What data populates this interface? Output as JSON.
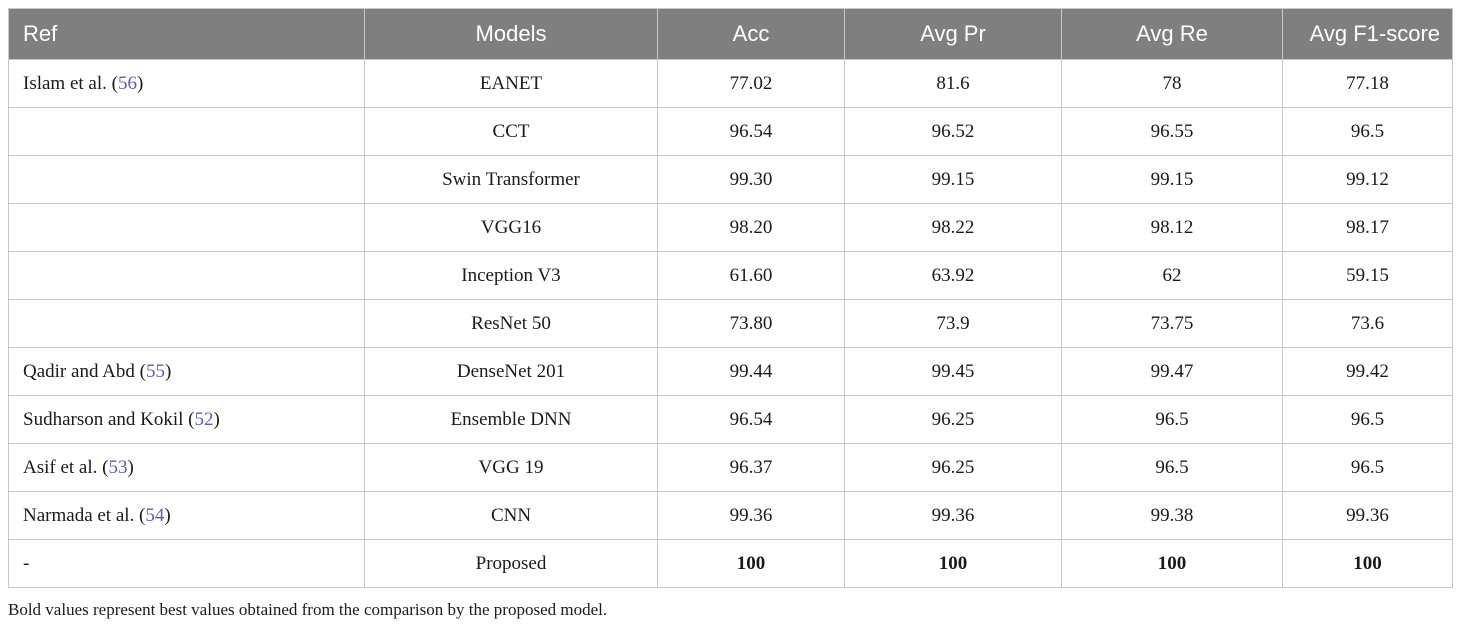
{
  "table": {
    "headers": [
      "Ref",
      "Models",
      "Acc",
      "Avg Pr",
      "Avg Re",
      "Avg F1-score"
    ],
    "rows": [
      {
        "ref": "Islam et al. (",
        "cite": "56",
        "ref_close": ")",
        "model": "EANET",
        "acc": "77.02",
        "pr": "81.6",
        "re": "78",
        "f1": "77.18",
        "bold": false
      },
      {
        "ref": "",
        "cite": "",
        "ref_close": "",
        "model": "CCT",
        "acc": "96.54",
        "pr": "96.52",
        "re": "96.55",
        "f1": "96.5",
        "bold": false
      },
      {
        "ref": "",
        "cite": "",
        "ref_close": "",
        "model": "Swin Transformer",
        "acc": "99.30",
        "pr": "99.15",
        "re": "99.15",
        "f1": "99.12",
        "bold": false
      },
      {
        "ref": "",
        "cite": "",
        "ref_close": "",
        "model": "VGG16",
        "acc": "98.20",
        "pr": "98.22",
        "re": "98.12",
        "f1": "98.17",
        "bold": false
      },
      {
        "ref": "",
        "cite": "",
        "ref_close": "",
        "model": "Inception V3",
        "acc": "61.60",
        "pr": "63.92",
        "re": "62",
        "f1": "59.15",
        "bold": false
      },
      {
        "ref": "",
        "cite": "",
        "ref_close": "",
        "model": "ResNet 50",
        "acc": "73.80",
        "pr": "73.9",
        "re": "73.75",
        "f1": "73.6",
        "bold": false
      },
      {
        "ref": "Qadir and Abd (",
        "cite": "55",
        "ref_close": ")",
        "model": "DenseNet 201",
        "acc": "99.44",
        "pr": "99.45",
        "re": "99.47",
        "f1": "99.42",
        "bold": false
      },
      {
        "ref": "Sudharson and Kokil (",
        "cite": "52",
        "ref_close": ")",
        "model": "Ensemble DNN",
        "acc": "96.54",
        "pr": "96.25",
        "re": "96.5",
        "f1": "96.5",
        "bold": false
      },
      {
        "ref": "Asif et al. (",
        "cite": "53",
        "ref_close": ")",
        "model": "VGG 19",
        "acc": "96.37",
        "pr": "96.25",
        "re": "96.5",
        "f1": "96.5",
        "bold": false
      },
      {
        "ref": "Narmada et al. (",
        "cite": "54",
        "ref_close": ")",
        "model": "CNN",
        "acc": "99.36",
        "pr": "99.36",
        "re": "99.38",
        "f1": "99.36",
        "bold": false
      },
      {
        "ref": "-",
        "cite": "",
        "ref_close": "",
        "model": "Proposed",
        "acc": "100",
        "pr": "100",
        "re": "100",
        "f1": "100",
        "bold": true
      }
    ]
  },
  "footnote": "Bold values represent best values obtained from the comparison by the proposed model."
}
